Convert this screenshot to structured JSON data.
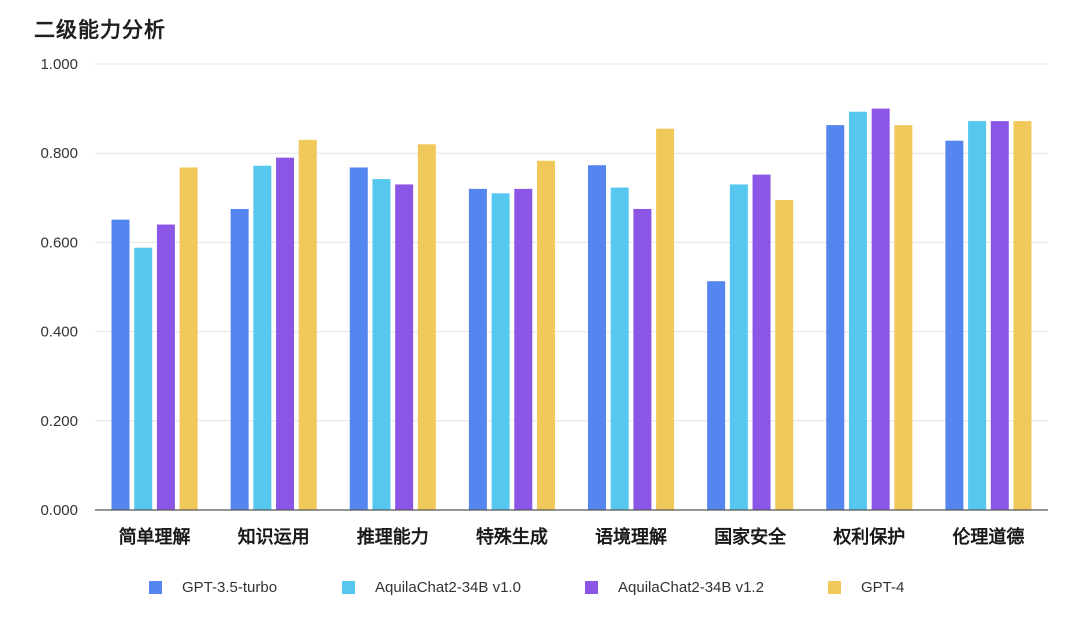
{
  "title": "二级能力分析",
  "chart_data": {
    "type": "bar",
    "title": "二级能力分析",
    "xlabel": "",
    "ylabel": "",
    "ylim": [
      0,
      1.0
    ],
    "yticks": [
      "0.000",
      "0.200",
      "0.400",
      "0.600",
      "0.800",
      "1.000"
    ],
    "grid": true,
    "legend_position": "bottom",
    "categories": [
      "简单理解",
      "知识运用",
      "推理能力",
      "特殊生成",
      "语境理解",
      "国家安全",
      "权利保护",
      "伦理道德"
    ],
    "series": [
      {
        "name": "GPT-3.5-turbo",
        "color": "#5585ee",
        "values": [
          0.651,
          0.675,
          0.768,
          0.72,
          0.773,
          0.513,
          0.863,
          0.828
        ]
      },
      {
        "name": "AquilaChat2-34B v1.0",
        "color": "#56c8ef",
        "values": [
          0.588,
          0.772,
          0.742,
          0.71,
          0.723,
          0.73,
          0.893,
          0.872
        ]
      },
      {
        "name": "AquilaChat2-34B v1.2",
        "color": "#8b56e6",
        "values": [
          0.64,
          0.79,
          0.73,
          0.72,
          0.675,
          0.752,
          0.9,
          0.872
        ]
      },
      {
        "name": "GPT-4",
        "color": "#f1c95b",
        "values": [
          0.768,
          0.83,
          0.82,
          0.783,
          0.855,
          0.695,
          0.863,
          0.872
        ]
      }
    ]
  }
}
